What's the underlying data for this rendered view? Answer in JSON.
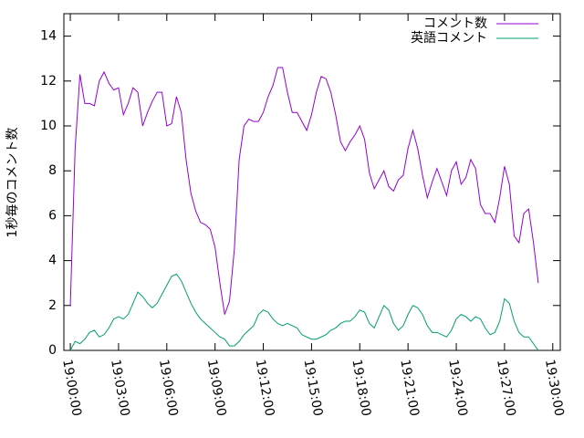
{
  "chart_data": {
    "type": "line",
    "ylabel": "1秒毎のコメント数",
    "x": [
      "19:00:00",
      "19:00:18",
      "19:00:36",
      "19:00:54",
      "19:01:12",
      "19:01:30",
      "19:01:48",
      "19:02:06",
      "19:02:24",
      "19:02:42",
      "19:03:00",
      "19:03:18",
      "19:03:36",
      "19:03:54",
      "19:04:12",
      "19:04:30",
      "19:04:48",
      "19:05:06",
      "19:05:24",
      "19:05:42",
      "19:06:00",
      "19:06:18",
      "19:06:36",
      "19:06:54",
      "19:07:12",
      "19:07:30",
      "19:07:48",
      "19:08:06",
      "19:08:24",
      "19:08:42",
      "19:09:00",
      "19:09:18",
      "19:09:36",
      "19:09:54",
      "19:10:12",
      "19:10:30",
      "19:10:48",
      "19:11:06",
      "19:11:24",
      "19:11:42",
      "19:12:00",
      "19:12:18",
      "19:12:36",
      "19:12:54",
      "19:13:12",
      "19:13:30",
      "19:13:48",
      "19:14:06",
      "19:14:24",
      "19:14:42",
      "19:15:00",
      "19:15:18",
      "19:15:36",
      "19:15:54",
      "19:16:12",
      "19:16:30",
      "19:16:48",
      "19:17:06",
      "19:17:24",
      "19:17:42",
      "19:18:00",
      "19:18:18",
      "19:18:36",
      "19:18:54",
      "19:19:12",
      "19:19:30",
      "19:19:48",
      "19:20:06",
      "19:20:24",
      "19:20:42",
      "19:21:00",
      "19:21:18",
      "19:21:36",
      "19:21:54",
      "19:22:12",
      "19:22:30",
      "19:22:48",
      "19:23:06",
      "19:23:24",
      "19:23:42",
      "19:24:00",
      "19:24:18",
      "19:24:36",
      "19:24:54",
      "19:25:12",
      "19:25:30",
      "19:25:48",
      "19:26:06",
      "19:26:24",
      "19:26:42",
      "19:27:00",
      "19:27:18",
      "19:27:36",
      "19:27:54",
      "19:28:12",
      "19:28:30",
      "19:28:48",
      "19:29:06"
    ],
    "series": [
      {
        "name": "コメント数",
        "color": "#9400d3",
        "values": [
          2.0,
          9,
          12.3,
          11,
          11,
          10.9,
          12,
          12.4,
          11.9,
          11.6,
          11.7,
          10.5,
          11,
          11.7,
          11.5,
          10,
          10.6,
          11.1,
          11.5,
          11.5,
          10,
          10.1,
          11.3,
          10.6,
          8.5,
          7,
          6.2,
          5.7,
          5.6,
          5.4,
          4.6,
          3,
          1.6,
          2.2,
          4.5,
          8.5,
          10,
          10.3,
          10.2,
          10.2,
          10.6,
          11.3,
          11.8,
          12.6,
          12.6,
          11.5,
          10.6,
          10.6,
          10.2,
          9.8,
          10.5,
          11.5,
          12.2,
          12.1,
          11.5,
          10.5,
          9.3,
          8.9,
          9.3,
          9.6,
          10,
          9.4,
          7.9,
          7.2,
          7.6,
          8,
          7.3,
          7.1,
          7.6,
          7.8,
          9,
          9.8,
          9,
          7.8,
          6.8,
          7.5,
          8.1,
          7.5,
          6.9,
          8,
          8.4,
          7.4,
          7.7,
          8.5,
          8.1,
          6.5,
          6.1,
          6.1,
          5.7,
          6.8,
          8.2,
          7.4,
          5.1,
          4.8,
          6.1,
          6.3,
          4.8,
          3.0
        ]
      },
      {
        "name": "英語コメント",
        "color": "#009e73",
        "values": [
          0,
          0.4,
          0.3,
          0.5,
          0.8,
          0.9,
          0.6,
          0.7,
          1.0,
          1.4,
          1.5,
          1.4,
          1.6,
          2.1,
          2.6,
          2.4,
          2.1,
          1.9,
          2.1,
          2.5,
          2.9,
          3.3,
          3.4,
          3.1,
          2.6,
          2.1,
          1.7,
          1.4,
          1.2,
          1.0,
          0.8,
          0.6,
          0.5,
          0.2,
          0.2,
          0.4,
          0.7,
          0.9,
          1.1,
          1.6,
          1.8,
          1.7,
          1.4,
          1.2,
          1.1,
          1.2,
          1.1,
          1.0,
          0.7,
          0.6,
          0.5,
          0.5,
          0.6,
          0.7,
          0.9,
          1.0,
          1.2,
          1.3,
          1.3,
          1.5,
          1.8,
          1.7,
          1.2,
          1.0,
          1.5,
          2.0,
          1.8,
          1.2,
          0.9,
          1.1,
          1.6,
          2.0,
          1.9,
          1.6,
          1.1,
          0.8,
          0.8,
          0.7,
          0.6,
          0.9,
          1.4,
          1.6,
          1.5,
          1.3,
          1.5,
          1.4,
          1.0,
          0.7,
          0.8,
          1.3,
          2.3,
          2.1,
          1.3,
          0.8,
          0.6,
          0.6,
          0.3,
          0
        ]
      }
    ],
    "xlim": [
      "18:59:36",
      "19:30:28"
    ],
    "xticks": [
      "19:00:00",
      "19:03:00",
      "19:06:00",
      "19:09:00",
      "19:12:00",
      "19:15:00",
      "19:18:00",
      "19:21:00",
      "19:24:00",
      "19:27:00",
      "19:30:00"
    ],
    "ylim": [
      0,
      15
    ],
    "yticks": [
      0,
      2,
      4,
      6,
      8,
      10,
      12,
      14
    ],
    "legend": "top-right"
  }
}
